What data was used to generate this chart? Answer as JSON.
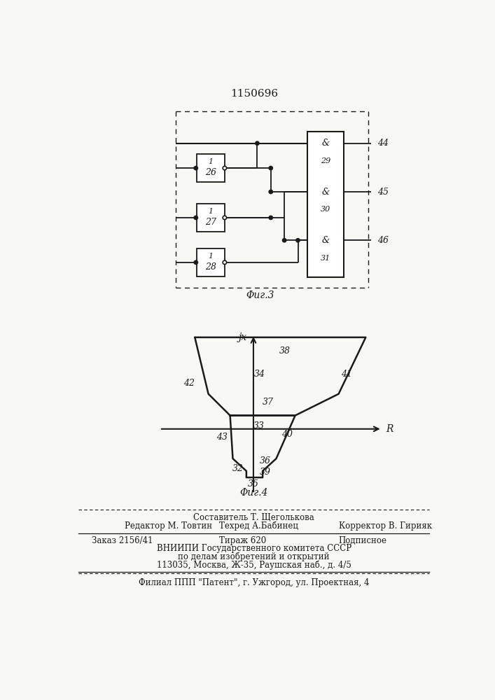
{
  "title": "1150696",
  "fig3_caption": "Φиг.3",
  "fig4_caption": "Φиг.4",
  "footer_line1": "Составитель Т. Щеголькова",
  "footer_line2_left": "Редактор М. Товтин",
  "footer_line2_mid": "Техред А.Бабинец",
  "footer_line2_right": "Корректор В. Гирияк",
  "footer_line3_left": "Заказ 2156/41",
  "footer_line3_mid": "Тираж 620",
  "footer_line3_right": "Подписное",
  "footer_line4": "ВНИИПИ Государственного комитета СССР",
  "footer_line5": "по делам изобретений и открытий",
  "footer_line6": "113035, Москва, Ж-35, Раушская наб., д. 4/5",
  "footer_line7": "Филиал ППП \"Патент\", г. Ужгород, ул. Проектная, 4",
  "bg_color": "#f8f8f5",
  "line_color": "#1a1a1a"
}
